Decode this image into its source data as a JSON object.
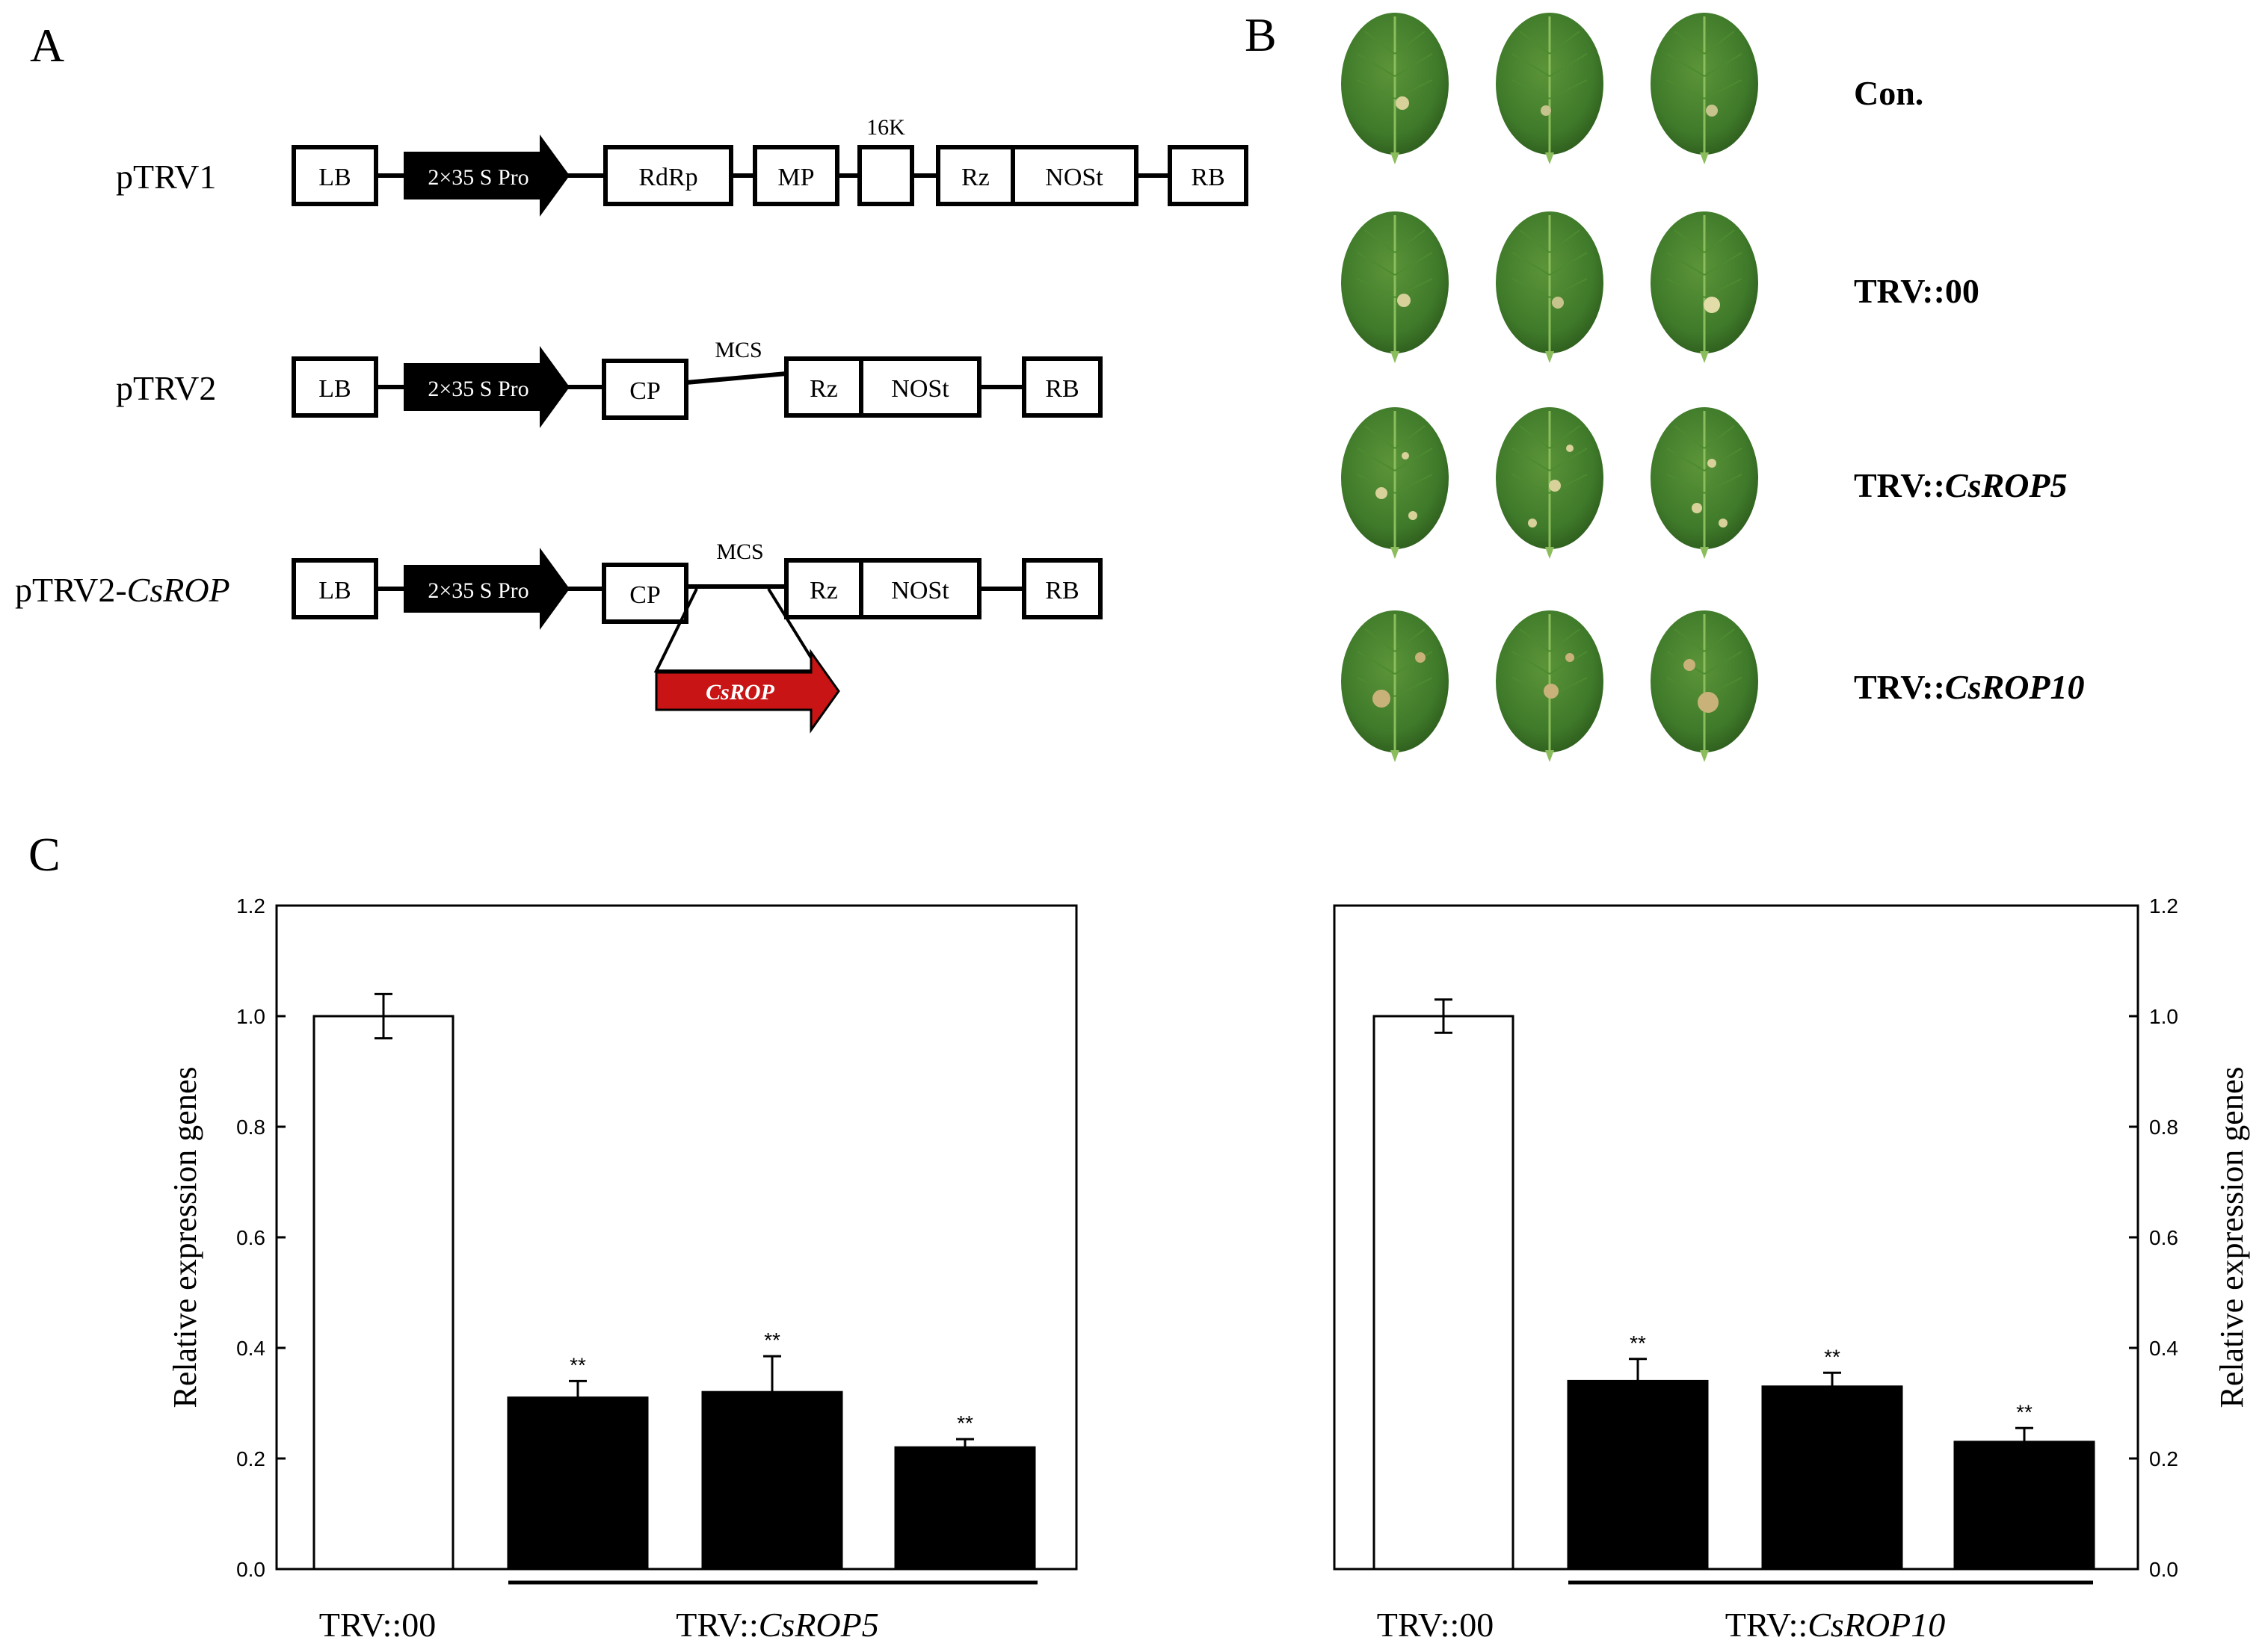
{
  "panels": {
    "a_letter": "A",
    "b_letter": "B",
    "c_letter": "C"
  },
  "constructs": {
    "ptrv1_label": "pTRV1",
    "ptrv2_label": "pTRV2",
    "ptrv2_rop_prefix": "pTRV2-",
    "ptrv2_rop_gene": "CsROP",
    "lb": "LB",
    "promoter": "2×35 S Pro",
    "rdrp": "RdRp",
    "mp": "MP",
    "k16": "16K",
    "rz": "Rz",
    "nost": "NOSt",
    "rb": "RB",
    "cp": "CP",
    "mcs": "MCS",
    "insert": "CsROP"
  },
  "leaf_rows": [
    {
      "label": "Con.",
      "prefix": "Con.",
      "gene": ""
    },
    {
      "label": "TRV::00",
      "prefix": "TRV::00",
      "gene": ""
    },
    {
      "label": "TRV::CsROP5",
      "prefix": "TRV::",
      "gene": "CsROP5"
    },
    {
      "label": "TRV::CsROP10",
      "prefix": "TRV::",
      "gene": "CsROP10"
    }
  ],
  "colors": {
    "leaf": "#3f7a2a",
    "leaf_dark": "#2c5a1c",
    "insert_red": "#c81414",
    "bar_fill": "#000000"
  },
  "chart_data": [
    {
      "type": "bar",
      "ylabel": "Relative expression genes",
      "ylim": [
        0,
        1.2
      ],
      "yticks": [
        "0.0",
        "0.2",
        "0.4",
        "0.6",
        "0.8",
        "1.0",
        "1.2"
      ],
      "bars": [
        {
          "value": 1.0,
          "err": 0.04,
          "fill": "white",
          "sig": ""
        },
        {
          "value": 0.31,
          "err": 0.03,
          "fill": "black",
          "sig": "**"
        },
        {
          "value": 0.32,
          "err": 0.065,
          "fill": "black",
          "sig": "**"
        },
        {
          "value": 0.22,
          "err": 0.015,
          "fill": "black",
          "sig": "**"
        }
      ],
      "categories": {
        "control": "TRV::00",
        "group_prefix": "TRV::",
        "group_gene": "CsROP5"
      },
      "yaxis_side": "left"
    },
    {
      "type": "bar",
      "ylabel": "Relative expression genes",
      "ylim": [
        0,
        1.2
      ],
      "yticks": [
        "0.0",
        "0.2",
        "0.4",
        "0.6",
        "0.8",
        "1.0",
        "1.2"
      ],
      "bars": [
        {
          "value": 1.0,
          "err": 0.03,
          "fill": "white",
          "sig": ""
        },
        {
          "value": 0.34,
          "err": 0.04,
          "fill": "black",
          "sig": "**"
        },
        {
          "value": 0.33,
          "err": 0.025,
          "fill": "black",
          "sig": "**"
        },
        {
          "value": 0.23,
          "err": 0.025,
          "fill": "black",
          "sig": "**"
        }
      ],
      "categories": {
        "control": "TRV::00",
        "group_prefix": "TRV::",
        "group_gene": "CsROP10"
      },
      "yaxis_side": "right"
    }
  ]
}
